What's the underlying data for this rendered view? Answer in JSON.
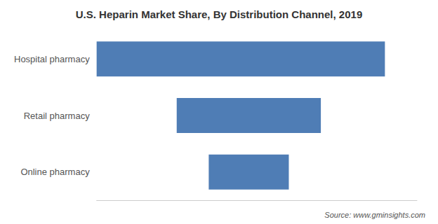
{
  "chart_data": {
    "type": "bar",
    "orientation": "horizontal",
    "title": "U.S. Heparin Market Share, By Distribution Channel, 2019",
    "categories": [
      "Online pharmacy",
      "Retail pharmacy",
      "Hospital pharmacy"
    ],
    "starts": [
      35,
      25,
      0
    ],
    "values": [
      25,
      45,
      90
    ],
    "color": "#4f7db5",
    "xlim": [
      0,
      100
    ],
    "grid": false,
    "tick_labels": "y",
    "annotation": "Source: www.gminsights.com"
  }
}
